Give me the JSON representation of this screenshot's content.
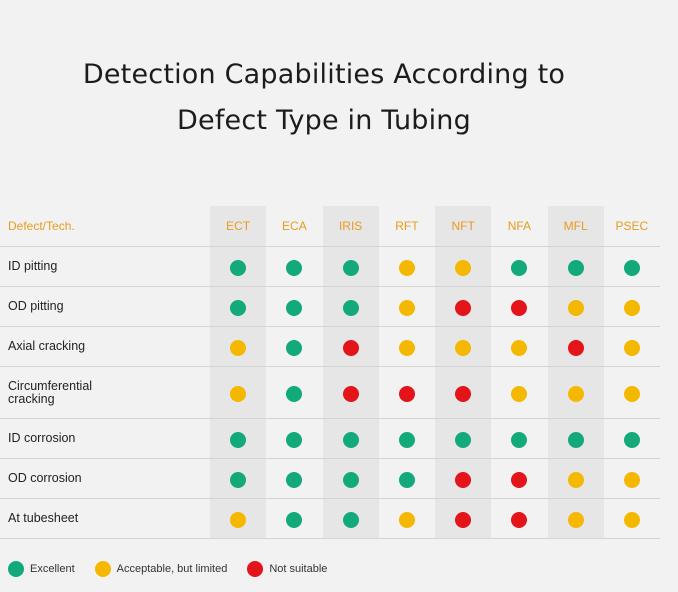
{
  "title_lines": [
    "Detection Capabilities According to",
    "Defect Type in Tubing"
  ],
  "colors": {
    "excellent": "#12a97b",
    "acceptable": "#f5b800",
    "not_suitable": "#e3141a",
    "header": "#e89b1e"
  },
  "table": {
    "label_header": "Defect/Tech.",
    "techs": [
      "ECT",
      "ECA",
      "IRIS",
      "RFT",
      "NFT",
      "NFA",
      "MFL",
      "PSEC"
    ],
    "rows": [
      {
        "label": "ID pitting",
        "ratings": [
          "excellent",
          "excellent",
          "excellent",
          "acceptable",
          "acceptable",
          "excellent",
          "excellent",
          "excellent"
        ]
      },
      {
        "label": "OD pitting",
        "ratings": [
          "excellent",
          "excellent",
          "excellent",
          "acceptable",
          "not_suitable",
          "not_suitable",
          "acceptable",
          "acceptable"
        ]
      },
      {
        "label": "Axial cracking",
        "ratings": [
          "acceptable",
          "excellent",
          "not_suitable",
          "acceptable",
          "acceptable",
          "acceptable",
          "not_suitable",
          "acceptable"
        ]
      },
      {
        "label": "Circumferential cracking",
        "ratings": [
          "acceptable",
          "excellent",
          "not_suitable",
          "not_suitable",
          "not_suitable",
          "acceptable",
          "acceptable",
          "acceptable"
        ]
      },
      {
        "label": "ID corrosion",
        "ratings": [
          "excellent",
          "excellent",
          "excellent",
          "excellent",
          "excellent",
          "excellent",
          "excellent",
          "excellent"
        ]
      },
      {
        "label": "OD corrosion",
        "ratings": [
          "excellent",
          "excellent",
          "excellent",
          "excellent",
          "not_suitable",
          "not_suitable",
          "acceptable",
          "acceptable"
        ]
      },
      {
        "label": "At tubesheet",
        "ratings": [
          "acceptable",
          "excellent",
          "excellent",
          "acceptable",
          "not_suitable",
          "not_suitable",
          "acceptable",
          "acceptable"
        ]
      }
    ]
  },
  "legend": [
    {
      "key": "excellent",
      "label": "Excellent"
    },
    {
      "key": "acceptable",
      "label": "Acceptable, but limited"
    },
    {
      "key": "not_suitable",
      "label": "Not suitable"
    }
  ]
}
